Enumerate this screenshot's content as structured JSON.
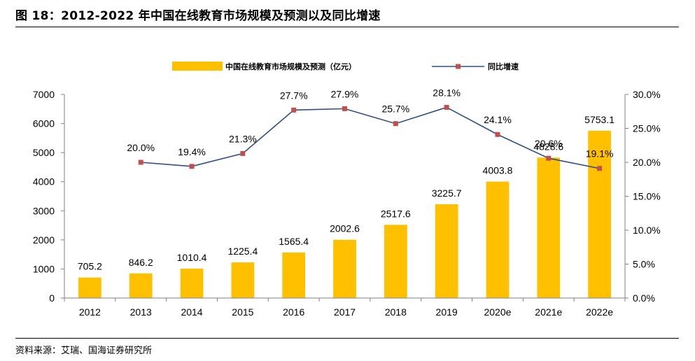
{
  "figure": {
    "title": "图 18：2012-2022 年中国在线教育市场规模及预测以及同比增速",
    "source": "资料来源：艾瑞、国海证券研究所"
  },
  "colors": {
    "bar": "#ffc000",
    "line": "#2f4e89",
    "marker": "#c0504d",
    "axis": "#808080",
    "text": "#000000"
  },
  "chart_data": {
    "type": "bar",
    "title": "",
    "categories": [
      "2012",
      "2013",
      "2014",
      "2015",
      "2016",
      "2017",
      "2018",
      "2019",
      "2020e",
      "2021e",
      "2022e"
    ],
    "series": [
      {
        "name": "中国在线教育市场规模及预测（亿元）",
        "type": "bar",
        "axis": "left",
        "values": [
          705.2,
          846.2,
          1010.4,
          1225.4,
          1565.4,
          2002.6,
          2517.6,
          3225.7,
          4003.8,
          4828.6,
          5753.1
        ],
        "labels": [
          "705.2",
          "846.2",
          "1010.4",
          "1225.4",
          "1565.4",
          "2002.6",
          "2517.6",
          "3225.7",
          "4003.8",
          "4828.6",
          "5753.1"
        ]
      },
      {
        "name": "同比增速",
        "type": "line",
        "axis": "right",
        "values": [
          null,
          20.0,
          19.4,
          21.3,
          27.7,
          27.9,
          25.7,
          28.1,
          24.1,
          20.6,
          19.1
        ],
        "labels": [
          "",
          "20.0%",
          "19.4%",
          "21.3%",
          "27.7%",
          "27.9%",
          "25.7%",
          "28.1%",
          "24.1%",
          "20.6%",
          "19.1%"
        ]
      }
    ],
    "y_left": {
      "lim": [
        0,
        7000
      ],
      "ticks": [
        0,
        1000,
        2000,
        3000,
        4000,
        5000,
        6000,
        7000
      ],
      "tick_labels": [
        "0",
        "1000",
        "2000",
        "3000",
        "4000",
        "5000",
        "6000",
        "7000"
      ]
    },
    "y_right": {
      "lim": [
        0,
        30
      ],
      "ticks": [
        0,
        5,
        10,
        15,
        20,
        25,
        30
      ],
      "tick_labels": [
        "0.0%",
        "5.0%",
        "10.0%",
        "15.0%",
        "20.0%",
        "25.0%",
        "30.0%"
      ]
    },
    "grid": false,
    "legend": "top-center"
  }
}
